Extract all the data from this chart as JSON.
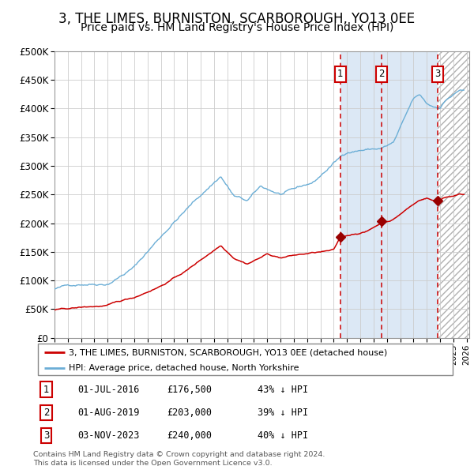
{
  "title": "3, THE LIMES, BURNISTON, SCARBOROUGH, YO13 0EE",
  "subtitle": "Price paid vs. HM Land Registry's House Price Index (HPI)",
  "title_fontsize": 12,
  "subtitle_fontsize": 10,
  "ylabel_values": [
    "£0",
    "£50K",
    "£100K",
    "£150K",
    "£200K",
    "£250K",
    "£300K",
    "£350K",
    "£400K",
    "£450K",
    "£500K"
  ],
  "ytick_values": [
    0,
    50000,
    100000,
    150000,
    200000,
    250000,
    300000,
    350000,
    400000,
    450000,
    500000
  ],
  "ylim": [
    0,
    500000
  ],
  "xlim_start": 1995.0,
  "xlim_end": 2026.2,
  "sale_dates": [
    2016.5,
    2019.583,
    2023.837
  ],
  "sale_prices": [
    176500,
    203000,
    240000
  ],
  "sale_labels": [
    "1",
    "2",
    "3"
  ],
  "sale_date_strs": [
    "01-JUL-2016",
    "01-AUG-2019",
    "03-NOV-2023"
  ],
  "sale_price_strs": [
    "£176,500",
    "£203,000",
    "£240,000"
  ],
  "sale_pct_strs": [
    "43% ↓ HPI",
    "39% ↓ HPI",
    "40% ↓ HPI"
  ],
  "hpi_color": "#6baed6",
  "price_color": "#cc0000",
  "vline_color": "#cc0000",
  "shade_color": "#dce8f5",
  "legend_label_price": "3, THE LIMES, BURNISTON, SCARBOROUGH, YO13 0EE (detached house)",
  "legend_label_hpi": "HPI: Average price, detached house, North Yorkshire",
  "footnote": "Contains HM Land Registry data © Crown copyright and database right 2024.\nThis data is licensed under the Open Government Licence v3.0.",
  "grid_color": "#cccccc",
  "background_color": "#ffffff"
}
